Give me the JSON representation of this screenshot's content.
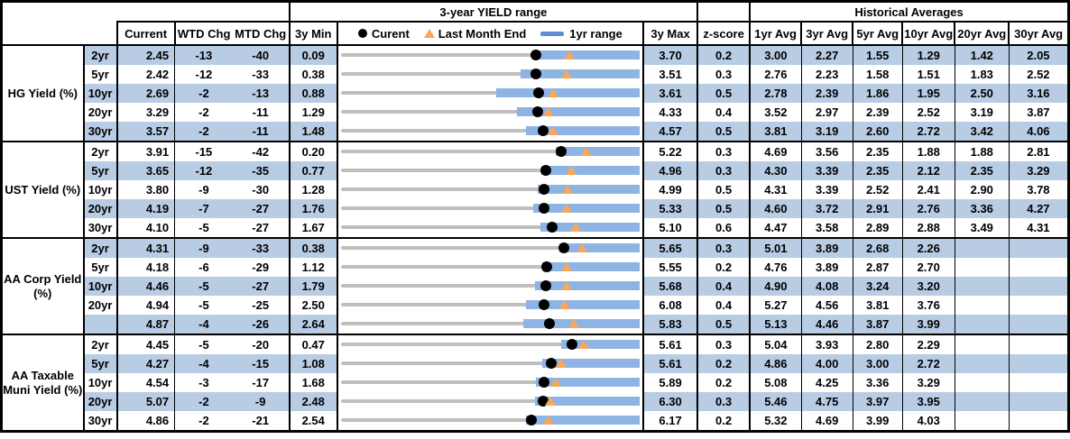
{
  "header": {
    "range_title": "3-year YIELD range",
    "hist_title": "Historical Averages",
    "cols": {
      "current": "Current",
      "wtd": "WTD Chg",
      "mtd": "MTD Chg",
      "min": "3y Min",
      "max": "3y Max",
      "z": "z-score",
      "avg1": "1yr Avg",
      "avg3": "3yr Avg",
      "avg5": "5yr Avg",
      "avg10": "10yr Avg",
      "avg20": "20yr Avg",
      "avg30": "30yr Avg"
    },
    "legend": {
      "current": "Curent",
      "lme": "Last Month End",
      "range": "1yr range"
    }
  },
  "colors": {
    "row_shade": "#b8cce4",
    "bar_blue": "#8db4e3",
    "line_gray": "#bfbfbf",
    "marker_orange": "#f9a65b",
    "marker_black": "#000000",
    "legend_bar_blue": "#5e8fcf",
    "border": "#000000"
  },
  "chart_data": {
    "type": "table",
    "note": "Each row embeds a bullet/range chart on axis [min3y, max3y]: gray line = full 3y range, blue bar = 1yr range (lo1y to max3y, lo1y estimated from pixels), black dot = current, orange triangle = last month end (lme = current + |MTD chg|/100).",
    "groups": [
      {
        "label": "HG Yield (%)",
        "rows": [
          {
            "tenor": "2yr",
            "current": "2.45",
            "wtd": "-13",
            "mtd": "-40",
            "min3y": "0.09",
            "max3y": "3.70",
            "z": "0.2",
            "avgs": [
              "3.00",
              "2.27",
              "1.55",
              "1.29",
              "1.42",
              "2.05"
            ],
            "lme": 2.85,
            "lo1y": 2.4
          },
          {
            "tenor": "5yr",
            "current": "2.42",
            "wtd": "-12",
            "mtd": "-33",
            "min3y": "0.38",
            "max3y": "3.51",
            "z": "0.3",
            "avgs": [
              "2.76",
              "2.23",
              "1.58",
              "1.51",
              "1.83",
              "2.52"
            ],
            "lme": 2.75,
            "lo1y": 2.26
          },
          {
            "tenor": "10yr",
            "current": "2.69",
            "wtd": "-2",
            "mtd": "-13",
            "min3y": "0.88",
            "max3y": "3.61",
            "z": "0.5",
            "avgs": [
              "2.78",
              "2.39",
              "1.86",
              "1.95",
              "2.50",
              "3.16"
            ],
            "lme": 2.82,
            "lo1y": 2.3
          },
          {
            "tenor": "20yr",
            "current": "3.29",
            "wtd": "-2",
            "mtd": "-11",
            "min3y": "1.29",
            "max3y": "4.33",
            "z": "0.4",
            "avgs": [
              "3.52",
              "2.97",
              "2.39",
              "2.52",
              "3.19",
              "3.87"
            ],
            "lme": 3.4,
            "lo1y": 3.08
          },
          {
            "tenor": "30yr",
            "current": "3.57",
            "wtd": "-2",
            "mtd": "-11",
            "min3y": "1.48",
            "max3y": "4.57",
            "z": "0.5",
            "avgs": [
              "3.81",
              "3.19",
              "2.60",
              "2.72",
              "3.42",
              "4.06"
            ],
            "lme": 3.68,
            "lo1y": 3.4
          }
        ]
      },
      {
        "label": "UST Yield (%)",
        "rows": [
          {
            "tenor": "2yr",
            "current": "3.91",
            "wtd": "-15",
            "mtd": "-42",
            "min3y": "0.20",
            "max3y": "5.22",
            "z": "0.3",
            "avgs": [
              "4.69",
              "3.56",
              "2.35",
              "1.88",
              "1.88",
              "2.81"
            ],
            "lme": 4.33,
            "lo1y": 3.81
          },
          {
            "tenor": "5yr",
            "current": "3.65",
            "wtd": "-12",
            "mtd": "-35",
            "min3y": "0.77",
            "max3y": "4.96",
            "z": "0.3",
            "avgs": [
              "4.30",
              "3.39",
              "2.35",
              "2.12",
              "2.35",
              "3.29"
            ],
            "lme": 4.0,
            "lo1y": 3.58
          },
          {
            "tenor": "10yr",
            "current": "3.80",
            "wtd": "-9",
            "mtd": "-30",
            "min3y": "1.28",
            "max3y": "4.99",
            "z": "0.5",
            "avgs": [
              "4.31",
              "3.39",
              "2.52",
              "2.41",
              "2.90",
              "3.78"
            ],
            "lme": 4.1,
            "lo1y": 3.73
          },
          {
            "tenor": "20yr",
            "current": "4.19",
            "wtd": "-7",
            "mtd": "-27",
            "min3y": "1.76",
            "max3y": "5.33",
            "z": "0.5",
            "avgs": [
              "4.60",
              "3.72",
              "2.91",
              "2.76",
              "3.36",
              "4.27"
            ],
            "lme": 4.46,
            "lo1y": 4.06
          },
          {
            "tenor": "30yr",
            "current": "4.10",
            "wtd": "-5",
            "mtd": "-27",
            "min3y": "1.67",
            "max3y": "5.10",
            "z": "0.6",
            "avgs": [
              "4.47",
              "3.58",
              "2.89",
              "2.88",
              "3.49",
              "4.31"
            ],
            "lme": 4.37,
            "lo1y": 3.96
          }
        ]
      },
      {
        "label": "AA Corp Yield (%)",
        "rows": [
          {
            "tenor": "2yr",
            "current": "4.31",
            "wtd": "-9",
            "mtd": "-33",
            "min3y": "0.38",
            "max3y": "5.65",
            "z": "0.3",
            "avgs": [
              "5.01",
              "3.89",
              "2.68",
              "2.26",
              "",
              ""
            ],
            "lme": 4.64,
            "lo1y": 4.23
          },
          {
            "tenor": "5yr",
            "current": "4.18",
            "wtd": "-6",
            "mtd": "-29",
            "min3y": "1.12",
            "max3y": "5.55",
            "z": "0.2",
            "avgs": [
              "4.76",
              "3.89",
              "2.87",
              "2.70",
              "",
              ""
            ],
            "lme": 4.47,
            "lo1y": 4.11
          },
          {
            "tenor": "10yr",
            "current": "4.46",
            "wtd": "-5",
            "mtd": "-27",
            "min3y": "1.79",
            "max3y": "5.68",
            "z": "0.4",
            "avgs": [
              "4.90",
              "4.08",
              "3.24",
              "3.20",
              "",
              ""
            ],
            "lme": 4.73,
            "lo1y": 4.32
          },
          {
            "tenor": "20yr",
            "current": "4.94",
            "wtd": "-5",
            "mtd": "-25",
            "min3y": "2.50",
            "max3y": "6.08",
            "z": "0.4",
            "avgs": [
              "5.27",
              "4.56",
              "3.81",
              "3.76",
              "",
              ""
            ],
            "lme": 5.19,
            "lo1y": 4.72
          },
          {
            "tenor": "",
            "current": "4.87",
            "wtd": "-4",
            "mtd": "-26",
            "min3y": "2.64",
            "max3y": "5.83",
            "z": "0.5",
            "avgs": [
              "5.13",
              "4.46",
              "3.87",
              "3.99",
              "",
              ""
            ],
            "lme": 5.13,
            "lo1y": 4.59
          }
        ]
      },
      {
        "label": "AA Taxable Muni Yield (%)",
        "rows": [
          {
            "tenor": "2yr",
            "current": "4.45",
            "wtd": "-5",
            "mtd": "-20",
            "min3y": "0.47",
            "max3y": "5.61",
            "z": "0.3",
            "avgs": [
              "5.04",
              "3.93",
              "2.80",
              "2.29",
              "",
              ""
            ],
            "lme": 4.65,
            "lo1y": 4.27
          },
          {
            "tenor": "5yr",
            "current": "4.27",
            "wtd": "-4",
            "mtd": "-15",
            "min3y": "1.08",
            "max3y": "5.61",
            "z": "0.2",
            "avgs": [
              "4.86",
              "4.00",
              "3.00",
              "2.72",
              "",
              ""
            ],
            "lme": 4.42,
            "lo1y": 4.14
          },
          {
            "tenor": "10yr",
            "current": "4.54",
            "wtd": "-3",
            "mtd": "-17",
            "min3y": "1.68",
            "max3y": "5.89",
            "z": "0.2",
            "avgs": [
              "5.08",
              "4.25",
              "3.36",
              "3.29",
              "",
              ""
            ],
            "lme": 4.71,
            "lo1y": 4.43
          },
          {
            "tenor": "20yr",
            "current": "5.07",
            "wtd": "-2",
            "mtd": "-9",
            "min3y": "2.48",
            "max3y": "6.30",
            "z": "0.3",
            "avgs": [
              "5.46",
              "4.75",
              "3.97",
              "3.95",
              "",
              ""
            ],
            "lme": 5.16,
            "lo1y": 4.96
          },
          {
            "tenor": "30yr",
            "current": "4.86",
            "wtd": "-2",
            "mtd": "-21",
            "min3y": "2.54",
            "max3y": "6.17",
            "z": "0.2",
            "avgs": [
              "5.32",
              "4.69",
              "3.99",
              "4.03",
              "",
              ""
            ],
            "lme": 5.07,
            "lo1y": 4.79
          }
        ]
      }
    ]
  }
}
